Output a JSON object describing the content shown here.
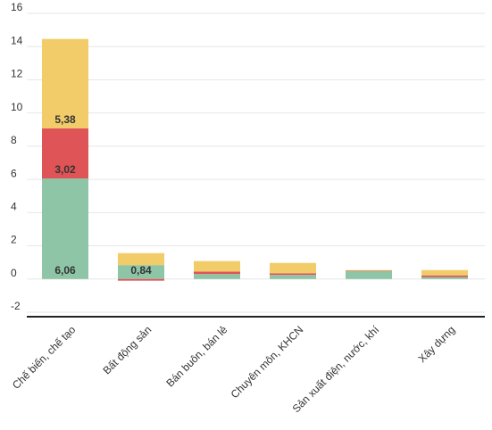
{
  "chart_data": {
    "type": "stacked_bar",
    "categories": [
      "Chế biến, chế tạo",
      "Bất động sản",
      "Bán buôn, bán lẻ",
      "Chuyên môn, KHCN",
      "Sản xuất điện, nước, khí",
      "Xây dựng"
    ],
    "series": [
      {
        "color": "#8ec5a6",
        "values": [
          6.06,
          0.84,
          0.3,
          0.25,
          0.5,
          0.12
        ],
        "value_labels": [
          "6,06",
          "0,84",
          null,
          null,
          null,
          null
        ]
      },
      {
        "color": "#df5457",
        "values": [
          3.02,
          -0.1,
          0.15,
          0.1,
          0.02,
          0.1
        ],
        "value_labels": [
          "3,02",
          null,
          null,
          null,
          null,
          null
        ]
      },
      {
        "color": "#f1cc69",
        "values": [
          5.38,
          0.72,
          0.63,
          0.62,
          0.02,
          0.32
        ],
        "value_labels": [
          "5,38",
          null,
          null,
          null,
          null,
          null
        ]
      }
    ],
    "ylim": [
      -2,
      16
    ],
    "yticks": [
      -2,
      0,
      2,
      4,
      6,
      8,
      10,
      12,
      14,
      16
    ],
    "grid": true
  }
}
